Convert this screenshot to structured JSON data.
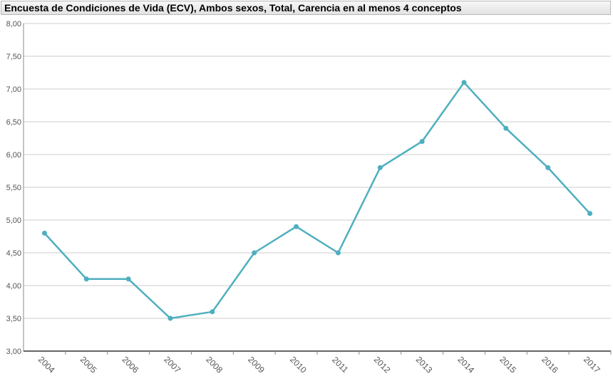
{
  "title": "Encuesta de Condiciones de Vida (ECV), Ambos sexos, Total, Carencia en al menos 4 conceptos",
  "colors": {
    "series": "#4eafbf",
    "grid": "#cccccc",
    "axis": "#888888"
  },
  "chart_data": {
    "type": "line",
    "title": "Encuesta de Condiciones de Vida (ECV), Ambos sexos, Total, Carencia en al menos 4 conceptos",
    "xlabel": "",
    "ylabel": "",
    "ylim": [
      3.0,
      8.0
    ],
    "ytick_step": 0.5,
    "yticks": [
      "3,00",
      "3,50",
      "4,00",
      "4,50",
      "5,00",
      "5,50",
      "6,00",
      "6,50",
      "7,00",
      "7,50",
      "8,00"
    ],
    "categories": [
      "2004",
      "2005",
      "2006",
      "2007",
      "2008",
      "2009",
      "2010",
      "2011",
      "2012",
      "2013",
      "2014",
      "2015",
      "2016",
      "2017"
    ],
    "series": [
      {
        "values": [
          4.8,
          4.1,
          4.1,
          3.5,
          3.6,
          4.5,
          4.9,
          4.5,
          5.8,
          6.2,
          7.1,
          6.4,
          5.8,
          5.1
        ]
      }
    ],
    "grid": true,
    "legend": "none"
  }
}
